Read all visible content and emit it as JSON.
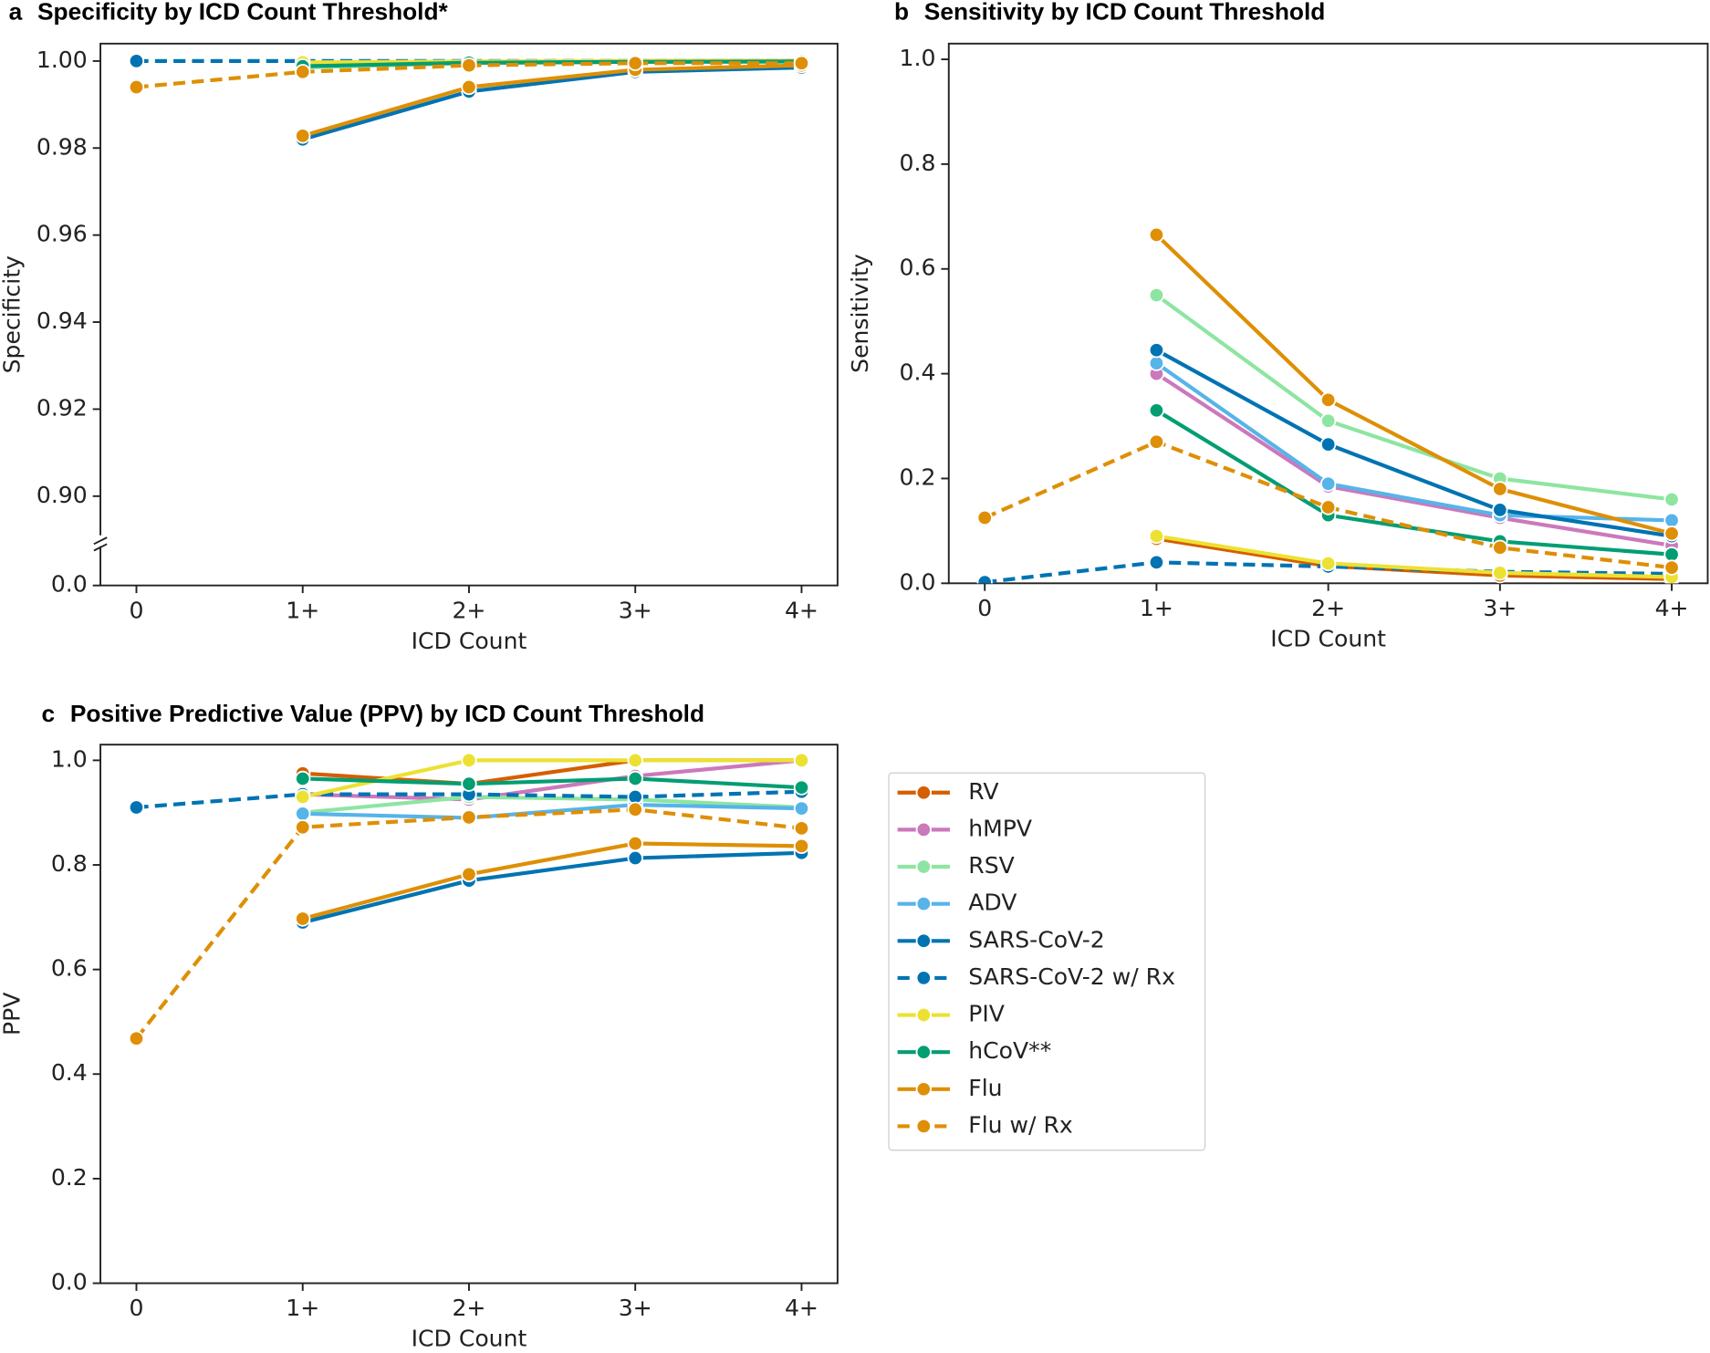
{
  "chart_data": [
    {
      "type": "line",
      "panel": "a",
      "title": "Specificity by ICD Count Threshold*",
      "xlabel": "ICD Count",
      "ylabel": "Specificity",
      "categories": [
        "0",
        "1+",
        "2+",
        "3+",
        "4+"
      ],
      "ylim": [
        0,
        1.004
      ],
      "ybreak": 0.89,
      "yticks": [
        {
          "value": 0,
          "label": "0.0"
        },
        {
          "value": 0.9,
          "label": "0.90"
        },
        {
          "value": 0.92,
          "label": "0.92"
        },
        {
          "value": 0.94,
          "label": "0.94"
        },
        {
          "value": 0.96,
          "label": "0.96"
        },
        {
          "value": 0.98,
          "label": "0.98"
        },
        {
          "value": 1.0,
          "label": "1.00"
        }
      ],
      "series": [
        {
          "name": "RV",
          "color": "#d55e00",
          "values": [
            null,
            0.9995,
            0.9998,
            1.0,
            1.0
          ]
        },
        {
          "name": "hMPV",
          "color": "#cc78bc",
          "values": [
            null,
            0.9995,
            0.9998,
            0.9999,
            1.0
          ]
        },
        {
          "name": "RSV",
          "color": "#8de5a1",
          "values": [
            null,
            0.9985,
            0.9995,
            0.9998,
            0.9999
          ]
        },
        {
          "name": "ADV",
          "color": "#56b4e9",
          "values": [
            null,
            0.9992,
            0.9996,
            0.9998,
            0.9999
          ]
        },
        {
          "name": "SARS-CoV-2",
          "color": "#0173b2",
          "values": [
            null,
            0.982,
            0.993,
            0.9975,
            0.9985
          ]
        },
        {
          "name": "SARS-CoV-2 w/ Rx",
          "color": "#0173b2",
          "dashed": true,
          "values": [
            1.0,
            1.0,
            1.0,
            1.0,
            1.0
          ]
        },
        {
          "name": "PIV",
          "color": "#ece133",
          "values": [
            null,
            0.9997,
            0.9999,
            1.0,
            1.0
          ]
        },
        {
          "name": "hCoV**",
          "color": "#029e73",
          "values": [
            null,
            0.9988,
            0.9996,
            0.9998,
            0.9999
          ]
        },
        {
          "name": "Flu",
          "color": "#de8f05",
          "values": [
            null,
            0.9828,
            0.994,
            0.998,
            0.999
          ]
        },
        {
          "name": "Flu w/ Rx",
          "color": "#de8f05",
          "dashed": true,
          "values": [
            0.994,
            0.9975,
            0.999,
            0.9995,
            0.9995
          ]
        }
      ]
    },
    {
      "type": "line",
      "panel": "b",
      "title": "Sensitivity by ICD Count Threshold",
      "xlabel": "ICD Count",
      "ylabel": "Sensitivity",
      "categories": [
        "0",
        "1+",
        "2+",
        "3+",
        "4+"
      ],
      "ylim": [
        0,
        1.03
      ],
      "yticks": [
        {
          "value": 0,
          "label": "0.0"
        },
        0.2,
        0.4,
        0.6,
        0.8,
        {
          "value": 1.0,
          "label": "1.0"
        }
      ],
      "series": [
        {
          "name": "RV",
          "color": "#d55e00",
          "values": [
            null,
            0.085,
            0.033,
            0.015,
            0.008
          ]
        },
        {
          "name": "hMPV",
          "color": "#cc78bc",
          "values": [
            null,
            0.4,
            0.185,
            0.125,
            0.072
          ]
        },
        {
          "name": "RSV",
          "color": "#8de5a1",
          "values": [
            null,
            0.55,
            0.31,
            0.2,
            0.16
          ]
        },
        {
          "name": "ADV",
          "color": "#56b4e9",
          "values": [
            null,
            0.42,
            0.19,
            0.13,
            0.12
          ]
        },
        {
          "name": "SARS-CoV-2",
          "color": "#0173b2",
          "values": [
            null,
            0.445,
            0.265,
            0.14,
            0.09
          ]
        },
        {
          "name": "SARS-CoV-2 w/ Rx",
          "color": "#0173b2",
          "dashed": true,
          "values": [
            0.002,
            0.04,
            0.032,
            0.022,
            0.018
          ]
        },
        {
          "name": "PIV",
          "color": "#ece133",
          "values": [
            null,
            0.09,
            0.038,
            0.02,
            0.012
          ]
        },
        {
          "name": "hCoV**",
          "color": "#029e73",
          "values": [
            null,
            0.33,
            0.13,
            0.08,
            0.055
          ]
        },
        {
          "name": "Flu",
          "color": "#de8f05",
          "values": [
            null,
            0.665,
            0.35,
            0.18,
            0.095
          ]
        },
        {
          "name": "Flu w/ Rx",
          "color": "#de8f05",
          "dashed": true,
          "values": [
            0.125,
            0.27,
            0.145,
            0.068,
            0.03
          ]
        }
      ]
    },
    {
      "type": "line",
      "panel": "c",
      "title": "Positive Predictive Value (PPV) by ICD Count Threshold",
      "xlabel": "ICD Count",
      "ylabel": "PPV",
      "categories": [
        "0",
        "1+",
        "2+",
        "3+",
        "4+"
      ],
      "ylim": [
        0,
        1.03
      ],
      "legend": "outside right",
      "yticks": [
        {
          "value": 0,
          "label": "0.0"
        },
        0.2,
        0.4,
        0.6,
        0.8,
        {
          "value": 1.0,
          "label": "1.0"
        }
      ],
      "series": [
        {
          "name": "RV",
          "color": "#d55e00",
          "values": [
            null,
            0.975,
            0.955,
            1.0,
            1.0
          ]
        },
        {
          "name": "hMPV",
          "color": "#cc78bc",
          "values": [
            null,
            0.935,
            0.925,
            0.97,
            1.0
          ]
        },
        {
          "name": "RSV",
          "color": "#8de5a1",
          "values": [
            null,
            0.9,
            0.93,
            0.925,
            0.91
          ]
        },
        {
          "name": "ADV",
          "color": "#56b4e9",
          "values": [
            null,
            0.898,
            0.89,
            0.915,
            0.908
          ]
        },
        {
          "name": "SARS-CoV-2",
          "color": "#0173b2",
          "values": [
            null,
            0.69,
            0.77,
            0.813,
            0.823
          ]
        },
        {
          "name": "SARS-CoV-2 w/ Rx",
          "color": "#0173b2",
          "dashed": true,
          "values": [
            0.91,
            0.935,
            0.935,
            0.93,
            0.94
          ]
        },
        {
          "name": "PIV",
          "color": "#ece133",
          "values": [
            null,
            0.93,
            1.0,
            1.0,
            1.0
          ]
        },
        {
          "name": "hCoV**",
          "color": "#029e73",
          "values": [
            null,
            0.965,
            0.955,
            0.965,
            0.948
          ]
        },
        {
          "name": "Flu",
          "color": "#de8f05",
          "values": [
            null,
            0.697,
            0.782,
            0.841,
            0.836
          ]
        },
        {
          "name": "Flu w/ Rx",
          "color": "#de8f05",
          "dashed": true,
          "values": [
            0.468,
            0.872,
            0.891,
            0.906,
            0.87
          ]
        }
      ]
    }
  ]
}
